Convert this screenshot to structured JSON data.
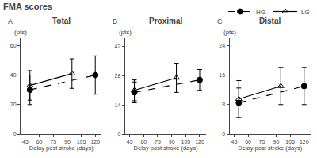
{
  "title": "FMA scores",
  "chart_data": [
    {
      "type": "line",
      "title": "Total",
      "annotations": [
        {
          "text": "A"
        }
      ],
      "xlabel": "Delay post stroke (days)",
      "ylabel": "(pts)",
      "xlim": [
        40,
        127
      ],
      "xticks": [
        45,
        60,
        75,
        90,
        105,
        120
      ],
      "ylim": [
        0,
        65
      ],
      "yticks": [
        0,
        20,
        40,
        60
      ],
      "grid": false,
      "legend": "top",
      "series": [
        {
          "name": "HG",
          "color": "#000000",
          "marker": "circle",
          "line_style": "dashed",
          "x": [
            50,
            120
          ],
          "values": [
            30,
            40
          ],
          "errors": [
            10,
            13
          ]
        },
        {
          "name": "LG",
          "color": "#000000",
          "marker": "triangle-up-open",
          "line_style": "solid",
          "x": [
            50,
            95
          ],
          "values": [
            33,
            41
          ],
          "errors": [
            10,
            10
          ]
        }
      ]
    },
    {
      "type": "line",
      "title": "Proximal",
      "annotations": [
        {
          "text": "B"
        }
      ],
      "xlabel": "Delay post stroke (days)",
      "ylabel": "(pts)",
      "xlim": [
        40,
        127
      ],
      "xticks": [
        45,
        60,
        75,
        90,
        105,
        120
      ],
      "ylim": [
        0,
        46
      ],
      "yticks": [
        0,
        14,
        28,
        42
      ],
      "grid": false,
      "series": [
        {
          "name": "HG",
          "color": "#000000",
          "marker": "circle",
          "line_style": "dashed",
          "x": [
            50,
            120
          ],
          "values": [
            20,
            26
          ],
          "errors": [
            5,
            5
          ]
        },
        {
          "name": "LG",
          "color": "#000000",
          "marker": "triangle-up-open",
          "line_style": "solid",
          "x": [
            50,
            95
          ],
          "values": [
            21,
            27
          ],
          "errors": [
            5,
            7
          ]
        }
      ]
    },
    {
      "type": "line",
      "title": "Distal",
      "annotations": [
        {
          "text": "C"
        }
      ],
      "xlabel": "Delay post stroke (days)",
      "ylabel": "(pts)",
      "xlim": [
        40,
        127
      ],
      "xticks": [
        45,
        60,
        75,
        90,
        105,
        120
      ],
      "ylim": [
        0,
        26
      ],
      "yticks": [
        0,
        8,
        16,
        24
      ],
      "grid": false,
      "series": [
        {
          "name": "HG",
          "color": "#000000",
          "marker": "circle",
          "line_style": "dashed",
          "x": [
            50,
            120
          ],
          "values": [
            8.5,
            13
          ],
          "errors": [
            4,
            5
          ]
        },
        {
          "name": "LG",
          "color": "#000000",
          "marker": "triangle-up-open",
          "line_style": "solid",
          "x": [
            50,
            95
          ],
          "values": [
            9.5,
            13
          ],
          "errors": [
            5,
            5
          ]
        }
      ]
    }
  ]
}
